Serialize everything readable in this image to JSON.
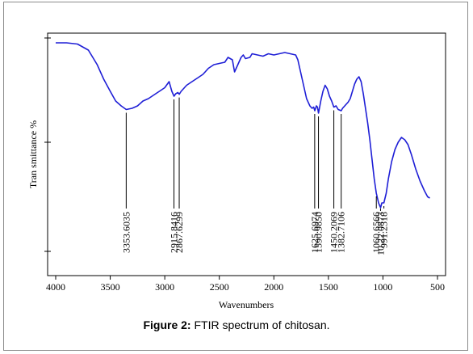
{
  "chart_data": {
    "type": "line",
    "xlabel": "Wavenumbers",
    "ylabel": "Tran smittance %",
    "xlim": [
      4000,
      500
    ],
    "x_ticks": [
      "4000",
      "3500",
      "3000",
      "2500",
      "2000",
      "1500",
      "1000",
      "500"
    ],
    "y_ticks_labeled": false,
    "grid": false,
    "series": [
      {
        "color": "#1f1fd6",
        "points": [
          [
            4000,
            0.96
          ],
          [
            3900,
            0.96
          ],
          [
            3800,
            0.955
          ],
          [
            3700,
            0.93
          ],
          [
            3620,
            0.87
          ],
          [
            3560,
            0.81
          ],
          [
            3500,
            0.76
          ],
          [
            3450,
            0.72
          ],
          [
            3400,
            0.7
          ],
          [
            3353,
            0.685
          ],
          [
            3300,
            0.69
          ],
          [
            3250,
            0.7
          ],
          [
            3200,
            0.72
          ],
          [
            3150,
            0.73
          ],
          [
            3100,
            0.745
          ],
          [
            3050,
            0.76
          ],
          [
            3000,
            0.775
          ],
          [
            2960,
            0.8
          ],
          [
            2935,
            0.76
          ],
          [
            2915,
            0.74
          ],
          [
            2900,
            0.75
          ],
          [
            2880,
            0.755
          ],
          [
            2867,
            0.748
          ],
          [
            2850,
            0.76
          ],
          [
            2800,
            0.785
          ],
          [
            2750,
            0.8
          ],
          [
            2700,
            0.815
          ],
          [
            2650,
            0.83
          ],
          [
            2600,
            0.855
          ],
          [
            2550,
            0.87
          ],
          [
            2500,
            0.875
          ],
          [
            2450,
            0.88
          ],
          [
            2420,
            0.9
          ],
          [
            2380,
            0.89
          ],
          [
            2360,
            0.84
          ],
          [
            2340,
            0.86
          ],
          [
            2300,
            0.9
          ],
          [
            2280,
            0.91
          ],
          [
            2260,
            0.895
          ],
          [
            2220,
            0.9
          ],
          [
            2200,
            0.915
          ],
          [
            2150,
            0.91
          ],
          [
            2100,
            0.905
          ],
          [
            2050,
            0.915
          ],
          [
            2000,
            0.91
          ],
          [
            1950,
            0.915
          ],
          [
            1900,
            0.92
          ],
          [
            1850,
            0.915
          ],
          [
            1800,
            0.91
          ],
          [
            1780,
            0.89
          ],
          [
            1760,
            0.85
          ],
          [
            1740,
            0.81
          ],
          [
            1720,
            0.77
          ],
          [
            1700,
            0.73
          ],
          [
            1670,
            0.7
          ],
          [
            1650,
            0.69
          ],
          [
            1635,
            0.695
          ],
          [
            1625,
            0.68
          ],
          [
            1610,
            0.7
          ],
          [
            1600,
            0.695
          ],
          [
            1591,
            0.67
          ],
          [
            1570,
            0.72
          ],
          [
            1550,
            0.76
          ],
          [
            1530,
            0.785
          ],
          [
            1510,
            0.77
          ],
          [
            1490,
            0.74
          ],
          [
            1470,
            0.72
          ],
          [
            1450,
            0.695
          ],
          [
            1430,
            0.7
          ],
          [
            1410,
            0.685
          ],
          [
            1383,
            0.68
          ],
          [
            1370,
            0.69
          ],
          [
            1350,
            0.7
          ],
          [
            1320,
            0.715
          ],
          [
            1300,
            0.73
          ],
          [
            1280,
            0.76
          ],
          [
            1260,
            0.79
          ],
          [
            1240,
            0.81
          ],
          [
            1220,
            0.82
          ],
          [
            1200,
            0.8
          ],
          [
            1180,
            0.75
          ],
          [
            1160,
            0.69
          ],
          [
            1140,
            0.63
          ],
          [
            1120,
            0.56
          ],
          [
            1100,
            0.48
          ],
          [
            1080,
            0.4
          ],
          [
            1061,
            0.34
          ],
          [
            1040,
            0.3
          ],
          [
            1022,
            0.28
          ],
          [
            1010,
            0.3
          ],
          [
            991,
            0.3
          ],
          [
            970,
            0.34
          ],
          [
            950,
            0.4
          ],
          [
            920,
            0.47
          ],
          [
            890,
            0.52
          ],
          [
            860,
            0.55
          ],
          [
            830,
            0.57
          ],
          [
            800,
            0.56
          ],
          [
            770,
            0.54
          ],
          [
            740,
            0.5
          ],
          [
            700,
            0.44
          ],
          [
            660,
            0.39
          ],
          [
            620,
            0.35
          ],
          [
            590,
            0.325
          ],
          [
            570,
            0.32
          ]
        ]
      }
    ],
    "peak_labels": [
      {
        "x": 3353.6035,
        "label": "3353.6035",
        "y_mark": 0.685
      },
      {
        "x": 2915.8416,
        "label": "2915.8416",
        "y_mark": 0.74
      },
      {
        "x": 2867.6299,
        "label": "2867.6299",
        "y_mark": 0.748
      },
      {
        "x": 1625.6974,
        "label": "1625.6974",
        "y_mark": 0.68
      },
      {
        "x": 1590.985,
        "label": "1590.9850",
        "y_mark": 0.67
      },
      {
        "x": 1450.2069,
        "label": "1450.2069",
        "y_mark": 0.695
      },
      {
        "x": 1382.7106,
        "label": "1382.7106",
        "y_mark": 0.68
      },
      {
        "x": 1060.6566,
        "label": "1060.6566",
        "y_mark": 0.34
      },
      {
        "x": 1022.0873,
        "label": "10.22.0873",
        "y_mark": 0.28
      },
      {
        "x": 991.2318,
        "label": "991.2318",
        "y_mark": 0.3
      }
    ]
  },
  "caption": {
    "bold_part": "Figure 2:",
    "text_part": " FTIR spectrum of chitosan."
  }
}
